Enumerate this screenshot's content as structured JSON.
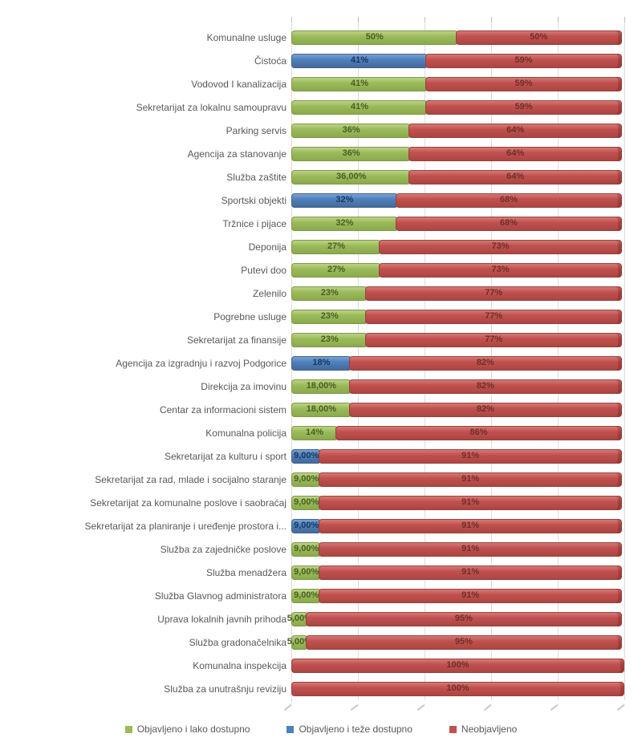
{
  "chart_data": {
    "type": "bar",
    "orientation": "horizontal-stacked",
    "title": "",
    "xlabel": "",
    "ylabel": "",
    "xlim": [
      0,
      100
    ],
    "gridlines": [
      0,
      20,
      40,
      60,
      80,
      100
    ],
    "grid": true,
    "legend_position": "bottom",
    "categories": [
      "Komunalne usluge",
      "Čistoća",
      "Vodovod I kanalizacija",
      "Sekretarijat za lokalnu samoupravu",
      "Parking servis",
      "Agencija za stanovanje",
      "Služba zaštite",
      "Sportski objekti",
      "Tržnice i pijace",
      "Deponija",
      "Putevi doo",
      "Zelenilo",
      "Pogrebne usluge",
      "Sekretarijat za finansije",
      "Agencija za izgradnju i razvoj Podgorice",
      "Direkcija za imovinu",
      "Centar za informacioni sistem",
      "Komunalna policija",
      "Sekretarijat za kulturu i sport",
      "Sekretarijat za rad, mlade i socijalno staranje",
      "Sekretarijat za komunalne poslove i saobraćaj",
      "Sekretarijat za planiranje i uređenje prostora i...",
      "Služba za zajedničke poslove",
      "Služba menadžera",
      "Služba Glavnog administratora",
      "Uprava lokalnih javnih prihoda",
      "Služba gradonačelnika",
      "Komunalna inspekcija",
      "Služba za unutrašnju reviziju"
    ],
    "series": [
      {
        "name": "Objavljeno i lako dostupno",
        "color": "#9BBB59",
        "values": [
          50,
          0,
          41,
          41,
          36,
          36,
          36,
          0,
          32,
          27,
          27,
          23,
          23,
          23,
          0,
          18,
          18,
          14,
          0,
          9,
          9,
          0,
          9,
          9,
          9,
          5,
          5,
          0,
          0
        ]
      },
      {
        "name": "Objavljeno i teže dostupno",
        "color": "#4F81BD",
        "values": [
          0,
          41,
          0,
          0,
          0,
          0,
          0,
          32,
          0,
          0,
          0,
          0,
          0,
          0,
          18,
          0,
          0,
          0,
          9,
          0,
          0,
          9,
          0,
          0,
          0,
          0,
          0,
          0,
          0
        ]
      },
      {
        "name": "Neobjavljeno",
        "color": "#C0504D",
        "values": [
          50,
          59,
          59,
          59,
          64,
          64,
          64,
          68,
          68,
          73,
          73,
          77,
          77,
          77,
          82,
          82,
          82,
          86,
          91,
          91,
          91,
          91,
          91,
          91,
          91,
          95,
          95,
          100,
          100
        ]
      }
    ]
  },
  "rows": [
    {
      "label": "Komunalne usluge",
      "segments": [
        {
          "type": "lako",
          "value": 50,
          "text": "50%"
        },
        {
          "type": "neobj",
          "value": 50,
          "text": "50%"
        }
      ]
    },
    {
      "label": "Čistoća",
      "segments": [
        {
          "type": "teze",
          "value": 41,
          "text": "41%"
        },
        {
          "type": "neobj",
          "value": 59,
          "text": "59%"
        }
      ]
    },
    {
      "label": "Vodovod I kanalizacija",
      "segments": [
        {
          "type": "lako",
          "value": 41,
          "text": "41%"
        },
        {
          "type": "neobj",
          "value": 59,
          "text": "59%"
        }
      ]
    },
    {
      "label": "Sekretarijat za lokalnu samoupravu",
      "segments": [
        {
          "type": "lako",
          "value": 41,
          "text": "41%"
        },
        {
          "type": "neobj",
          "value": 59,
          "text": "59%"
        }
      ]
    },
    {
      "label": "Parking servis",
      "segments": [
        {
          "type": "lako",
          "value": 36,
          "text": "36%"
        },
        {
          "type": "neobj",
          "value": 64,
          "text": "64%"
        }
      ]
    },
    {
      "label": "Agencija za stanovanje",
      "segments": [
        {
          "type": "lako",
          "value": 36,
          "text": "36%"
        },
        {
          "type": "neobj",
          "value": 64,
          "text": "64%"
        }
      ]
    },
    {
      "label": "Služba zaštite",
      "segments": [
        {
          "type": "lako",
          "value": 36,
          "text": "36,00%"
        },
        {
          "type": "neobj",
          "value": 64,
          "text": "64%"
        }
      ]
    },
    {
      "label": "Sportski objekti",
      "segments": [
        {
          "type": "teze",
          "value": 32,
          "text": "32%"
        },
        {
          "type": "neobj",
          "value": 68,
          "text": "68%"
        }
      ]
    },
    {
      "label": "Tržnice i pijace",
      "segments": [
        {
          "type": "lako",
          "value": 32,
          "text": "32%"
        },
        {
          "type": "neobj",
          "value": 68,
          "text": "68%"
        }
      ]
    },
    {
      "label": "Deponija",
      "segments": [
        {
          "type": "lako",
          "value": 27,
          "text": "27%"
        },
        {
          "type": "neobj",
          "value": 73,
          "text": "73%"
        }
      ]
    },
    {
      "label": "Putevi doo",
      "segments": [
        {
          "type": "lako",
          "value": 27,
          "text": "27%"
        },
        {
          "type": "neobj",
          "value": 73,
          "text": "73%"
        }
      ]
    },
    {
      "label": "Zelenilo",
      "segments": [
        {
          "type": "lako",
          "value": 23,
          "text": "23%"
        },
        {
          "type": "neobj",
          "value": 77,
          "text": "77%"
        }
      ]
    },
    {
      "label": "Pogrebne usluge",
      "segments": [
        {
          "type": "lako",
          "value": 23,
          "text": "23%"
        },
        {
          "type": "neobj",
          "value": 77,
          "text": "77%"
        }
      ]
    },
    {
      "label": "Sekretarijat za finansije",
      "segments": [
        {
          "type": "lako",
          "value": 23,
          "text": "23%"
        },
        {
          "type": "neobj",
          "value": 77,
          "text": "77%"
        }
      ]
    },
    {
      "label": "Agencija za izgradnju i razvoj Podgorice",
      "segments": [
        {
          "type": "teze",
          "value": 18,
          "text": "18%"
        },
        {
          "type": "neobj",
          "value": 82,
          "text": "82%"
        }
      ]
    },
    {
      "label": "Direkcija za imovinu",
      "segments": [
        {
          "type": "lako",
          "value": 18,
          "text": "18,00%"
        },
        {
          "type": "neobj",
          "value": 82,
          "text": "82%"
        }
      ]
    },
    {
      "label": "Centar za informacioni sistem",
      "segments": [
        {
          "type": "lako",
          "value": 18,
          "text": "18,00%"
        },
        {
          "type": "neobj",
          "value": 82,
          "text": "82%"
        }
      ]
    },
    {
      "label": "Komunalna policija",
      "segments": [
        {
          "type": "lako",
          "value": 14,
          "text": "14%"
        },
        {
          "type": "neobj",
          "value": 86,
          "text": "86%"
        }
      ]
    },
    {
      "label": "Sekretarijat za kulturu i sport",
      "segments": [
        {
          "type": "teze",
          "value": 9,
          "text": "9,00%"
        },
        {
          "type": "neobj",
          "value": 91,
          "text": "91%"
        }
      ]
    },
    {
      "label": "Sekretarijat za rad, mlade i socijalno staranje",
      "segments": [
        {
          "type": "lako",
          "value": 9,
          "text": "9,00%"
        },
        {
          "type": "neobj",
          "value": 91,
          "text": "91%"
        }
      ]
    },
    {
      "label": "Sekretarijat za komunalne poslove i saobraćaj",
      "segments": [
        {
          "type": "lako",
          "value": 9,
          "text": "9,00%"
        },
        {
          "type": "neobj",
          "value": 91,
          "text": "91%"
        }
      ]
    },
    {
      "label": "Sekretarijat za planiranje i uređenje prostora i...",
      "segments": [
        {
          "type": "teze",
          "value": 9,
          "text": "9,00%"
        },
        {
          "type": "neobj",
          "value": 91,
          "text": "91%"
        }
      ]
    },
    {
      "label": "Služba za zajedničke poslove",
      "segments": [
        {
          "type": "lako",
          "value": 9,
          "text": "9,00%"
        },
        {
          "type": "neobj",
          "value": 91,
          "text": "91%"
        }
      ]
    },
    {
      "label": "Služba menadžera",
      "segments": [
        {
          "type": "lako",
          "value": 9,
          "text": "9,00%"
        },
        {
          "type": "neobj",
          "value": 91,
          "text": "91%"
        }
      ]
    },
    {
      "label": "Služba Glavnog administratora",
      "segments": [
        {
          "type": "lako",
          "value": 9,
          "text": "9,00%"
        },
        {
          "type": "neobj",
          "value": 91,
          "text": "91%"
        }
      ]
    },
    {
      "label": "Uprava lokalnih javnih prihoda",
      "segments": [
        {
          "type": "lako",
          "value": 5,
          "text": "5,00%"
        },
        {
          "type": "neobj",
          "value": 95,
          "text": "95%"
        }
      ]
    },
    {
      "label": "Služba gradonačelnika",
      "segments": [
        {
          "type": "lako",
          "value": 5,
          "text": "5,00%"
        },
        {
          "type": "neobj",
          "value": 95,
          "text": "95%"
        }
      ]
    },
    {
      "label": "Komunalna inspekcija",
      "segments": [
        {
          "type": "neobj",
          "value": 100,
          "text": "100%"
        }
      ]
    },
    {
      "label": "Služba za unutrašnju reviziju",
      "segments": [
        {
          "type": "neobj",
          "value": 100,
          "text": "100%"
        }
      ]
    }
  ],
  "legend": {
    "items": [
      {
        "label": "Objavljeno i lako dostupno",
        "color": "#9BBB59"
      },
      {
        "label": "Objavljeno i teže dostupno",
        "color": "#4F81BD"
      },
      {
        "label": "Neobjavljeno",
        "color": "#C0504D"
      }
    ]
  },
  "colors": {
    "lako": "#9BBB59",
    "teze": "#4F81BD",
    "neobj": "#C0504D",
    "lako_label": "#4A5E23",
    "teze_label": "#17375E",
    "neobj_label": "#702E2A",
    "gridline": "#DCDCDC",
    "tick": "#BFBFBF",
    "category_text": "#595959"
  }
}
